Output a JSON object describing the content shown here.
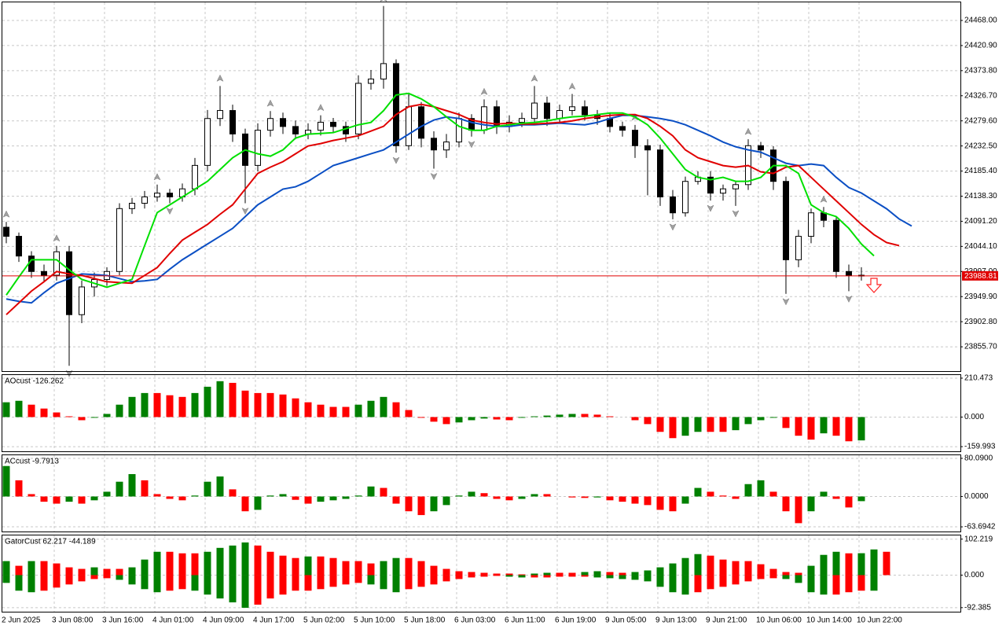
{
  "chart_data": [
    {
      "type": "candlestick",
      "ylim": [
        23810.1,
        24501.9
      ],
      "yticks": [
        {
          "value": 24468,
          "label": "24468.00"
        },
        {
          "value": 24420.9,
          "label": "24420.90"
        },
        {
          "value": 24373.8,
          "label": "24373.80"
        },
        {
          "value": 24326.7,
          "label": "24326.70"
        },
        {
          "value": 24279.6,
          "label": "24279.60"
        },
        {
          "value": 24232.5,
          "label": "24232.50"
        },
        {
          "value": 24185.4,
          "label": "24185.40"
        },
        {
          "value": 24138.3,
          "label": "24138.30"
        },
        {
          "value": 24091.2,
          "label": "24091.20"
        },
        {
          "value": 24044.1,
          "label": "24044.10"
        },
        {
          "value": 23997,
          "label": "23997.00"
        },
        {
          "value": 23949.9,
          "label": "23949.90"
        },
        {
          "value": 23902.8,
          "label": "23902.80"
        },
        {
          "value": 23855.7,
          "label": "23855.70"
        }
      ],
      "grid": true,
      "up_color": "#ffffff",
      "down_color": "#000000",
      "candles": [
        [
          24080,
          24090,
          24050,
          24063
        ],
        [
          24063,
          24070,
          24015,
          24026
        ],
        [
          24026,
          24035,
          23985,
          23997
        ],
        [
          23997,
          24010,
          23978,
          23990
        ],
        [
          23990,
          24045,
          23980,
          24034
        ],
        [
          24034,
          24045,
          23820,
          23916
        ],
        [
          23916,
          23980,
          23900,
          23968
        ],
        [
          23968,
          23995,
          23950,
          23982
        ],
        [
          23982,
          24005,
          23970,
          23997
        ],
        [
          23997,
          24125,
          23990,
          24115
        ],
        [
          24115,
          24135,
          24105,
          24125
        ],
        [
          24125,
          24148,
          24115,
          24137
        ],
        [
          24137,
          24160,
          24128,
          24144
        ],
        [
          24144,
          24152,
          24125,
          24137
        ],
        [
          24137,
          24162,
          24128,
          24152
        ],
        [
          24152,
          24210,
          24140,
          24196
        ],
        [
          24196,
          24300,
          24185,
          24284
        ],
        [
          24284,
          24345,
          24270,
          24299
        ],
        [
          24299,
          24310,
          24240,
          24255
        ],
        [
          24255,
          24265,
          24125,
          24196
        ],
        [
          24196,
          24275,
          24185,
          24262
        ],
        [
          24262,
          24298,
          24250,
          24284
        ],
        [
          24284,
          24295,
          24255,
          24269
        ],
        [
          24269,
          24280,
          24245,
          24255
        ],
        [
          24255,
          24275,
          24245,
          24262
        ],
        [
          24262,
          24290,
          24252,
          24277
        ],
        [
          24277,
          24285,
          24258,
          24269
        ],
        [
          24269,
          24278,
          24240,
          24255
        ],
        [
          24255,
          24365,
          24245,
          24350
        ],
        [
          24350,
          24375,
          24338,
          24358
        ],
        [
          24358,
          24495,
          24340,
          24387
        ],
        [
          24387,
          24395,
          24220,
          24233
        ],
        [
          24233,
          24330,
          24225,
          24306
        ],
        [
          24306,
          24315,
          24230,
          24247
        ],
        [
          24247,
          24260,
          24190,
          24225
        ],
        [
          24225,
          24255,
          24210,
          24240
        ],
        [
          24240,
          24295,
          24230,
          24284
        ],
        [
          24284,
          24292,
          24250,
          24262
        ],
        [
          24262,
          24320,
          24255,
          24306
        ],
        [
          24306,
          24318,
          24255,
          24269
        ],
        [
          24269,
          24290,
          24258,
          24277
        ],
        [
          24277,
          24295,
          24268,
          24284
        ],
        [
          24284,
          24345,
          24275,
          24313
        ],
        [
          24313,
          24325,
          24270,
          24284
        ],
        [
          24284,
          24310,
          24275,
          24299
        ],
        [
          24299,
          24330,
          24290,
          24306
        ],
        [
          24306,
          24318,
          24280,
          24291
        ],
        [
          24291,
          24300,
          24272,
          24284
        ],
        [
          24284,
          24295,
          24258,
          24269
        ],
        [
          24269,
          24278,
          24250,
          24262
        ],
        [
          24262,
          24272,
          24210,
          24233
        ],
        [
          24233,
          24245,
          24140,
          24225
        ],
        [
          24225,
          24235,
          24120,
          24137
        ],
        [
          24137,
          24150,
          24095,
          24107
        ],
        [
          24107,
          24175,
          24100,
          24166
        ],
        [
          24166,
          24185,
          24160,
          24174
        ],
        [
          24174,
          24185,
          24130,
          24144
        ],
        [
          24144,
          24160,
          24130,
          24152
        ],
        [
          24152,
          24165,
          24120,
          24160
        ],
        [
          24160,
          24245,
          24150,
          24233
        ],
        [
          24233,
          24240,
          24210,
          24225
        ],
        [
          24225,
          24232,
          24150,
          24166
        ],
        [
          24166,
          24175,
          23955,
          24019
        ],
        [
          24019,
          24075,
          24005,
          24063
        ],
        [
          24063,
          24115,
          24050,
          24107
        ],
        [
          24107,
          24118,
          24080,
          24093
        ],
        [
          24093,
          24100,
          23985,
          23997
        ],
        [
          23997,
          24010,
          23960,
          23990
        ],
        [
          23990,
          24005,
          23980,
          23988.81
        ]
      ],
      "fractal_color": "#a0a0a0",
      "fractals_up": [
        0,
        4,
        12,
        17,
        21,
        25,
        30,
        38,
        42,
        45,
        50,
        59,
        65
      ],
      "fractals_down": [
        5,
        13,
        19,
        31,
        34,
        37,
        53,
        56,
        58,
        62,
        67
      ],
      "lines": [
        {
          "color": "#0b4fc4",
          "values": [
            23945.4,
            23941.0,
            23938.1,
            23957.2,
            23974.9,
            23983.7,
            23992.5,
            23991.1,
            23989.6,
            23983.7,
            23977.8,
            23979.3,
            23982.2,
            24001.4,
            24019.0,
            24033.8,
            24048.5,
            24063.2,
            24077.9,
            24100.0,
            24122.1,
            24136.8,
            24151.5,
            24155.9,
            24166.2,
            24181.0,
            24195.7,
            24203.0,
            24210.4,
            24217.8,
            24225.1,
            24239.8,
            24254.6,
            24269.3,
            24281.1,
            24287.1,
            24284.0,
            24276.6,
            24272.2,
            24269.3,
            24269.3,
            24272.2,
            24272.2,
            24273.7,
            24275.2,
            24273.7,
            24272.2,
            24276.6,
            24284.0,
            24289.9,
            24289.9,
            24287.1,
            24284.0,
            24279.6,
            24272.2,
            24261.9,
            24251.6,
            24239.8,
            24231.0,
            24225.1,
            24220.7,
            24210.4,
            24200.1,
            24195.7,
            24198.6,
            24195.7,
            24173.6,
            24154.5,
            24144.2,
            24129.4,
            24114.7,
            24095.6,
            24082.3
          ]
        },
        {
          "color": "#e00000",
          "values": [
            23916.0,
            23938.1,
            23960.2,
            23977.8,
            23996.9,
            23992.5,
            23989.6,
            23983.7,
            23977.8,
            23976.3,
            23974.9,
            23989.6,
            24004.3,
            24030.8,
            24055.8,
            24070.6,
            24085.3,
            24104.4,
            24122.1,
            24151.5,
            24181.0,
            24192.7,
            24203.0,
            24217.8,
            24232.5,
            24236.9,
            24242.8,
            24247.2,
            24251.6,
            24260.4,
            24269.3,
            24291.4,
            24306.1,
            24310.5,
            24306.1,
            24298.7,
            24291.4,
            24281.1,
            24276.6,
            24273.7,
            24275.2,
            24273.7,
            24273.7,
            24275.2,
            24276.6,
            24279.6,
            24284.0,
            24287.1,
            24289.9,
            24291.4,
            24291.4,
            24284.0,
            24269.3,
            24251.6,
            24225.1,
            24210.4,
            24203.0,
            24195.7,
            24192.7,
            24195.7,
            24183.9,
            24181.0,
            24192.7,
            24195.7,
            24173.6,
            24151.5,
            24129.4,
            24107.4,
            24085.3,
            24066.1,
            24051.4,
            24045.5,
            null
          ]
        },
        {
          "color": "#00e000",
          "values": [
            23952.8,
            23986.7,
            24019.0,
            24019.0,
            24019.0,
            24000.1,
            23982.2,
            23974.9,
            23967.5,
            23974.9,
            23982.2,
            24045.5,
            24107.4,
            24122.1,
            24136.8,
            24151.5,
            24166.2,
            24188.3,
            24210.4,
            24225.1,
            24217.8,
            24213.3,
            24225.1,
            24247.2,
            24254.6,
            24256.0,
            24257.5,
            24264.9,
            24272.2,
            24276.6,
            24298.7,
            24328.2,
            24331.1,
            24320.8,
            24306.1,
            24287.1,
            24269.3,
            24261.9,
            24261.9,
            24269.3,
            24272.2,
            24275.2,
            24276.6,
            24279.6,
            24284.0,
            24287.1,
            24288.4,
            24291.4,
            24294.3,
            24294.3,
            24287.1,
            24272.2,
            24247.2,
            24217.8,
            24188.3,
            24173.6,
            24169.2,
            24173.6,
            24166.2,
            24166.2,
            24173.6,
            24195.7,
            24195.7,
            24181.0,
            24122.1,
            24107.4,
            24100.0,
            24077.9,
            24048.5,
            24026.4,
            null,
            null,
            null
          ]
        }
      ],
      "price_line": 23988.81,
      "price_line_color": "#e00000"
    },
    {
      "type": "bar",
      "title": "AOcust -126.262",
      "ylim": [
        -185.2,
        227.3
      ],
      "yticks": [
        210.473,
        {
          "value": 0,
          "label": "0.000"
        },
        -159.993
      ],
      "up_color": "#008000",
      "down_color": "#ff0000",
      "values": [
        80,
        88,
        67,
        46,
        25,
        4,
        -17,
        -4,
        17,
        67,
        109,
        130,
        130,
        118,
        109,
        130,
        164,
        194,
        185,
        143,
        130,
        130,
        122,
        101,
        80,
        67,
        55,
        55,
        67,
        88,
        109,
        80,
        38,
        -4,
        -25,
        -38,
        -29,
        -17,
        -8,
        -13,
        -17,
        -4,
        4,
        8,
        13,
        17,
        17,
        13,
        4,
        0,
        -17,
        -38,
        -80,
        -114,
        -101,
        -80,
        -80,
        -80,
        -71,
        -38,
        -17,
        -4,
        -59,
        -101,
        -122,
        -88,
        -101,
        -131,
        -126.262
      ]
    },
    {
      "type": "bar",
      "title": "ACcust -9.7913",
      "ylim": [
        -73.5,
        86.6
      ],
      "yticks": [
        {
          "value": 80.09,
          "label": "80.0900"
        },
        {
          "value": 0,
          "label": "0.0000"
        },
        -63.6942
      ],
      "up_color": "#008000",
      "down_color": "#ff0000",
      "values": [
        64,
        34,
        5,
        -11,
        -15,
        -11,
        -15,
        -8,
        10,
        31,
        47,
        34,
        5,
        -5,
        -8,
        2,
        31,
        42,
        15,
        -31,
        -28,
        2,
        5,
        -7,
        -15,
        -11,
        -8,
        -5,
        2,
        21,
        18,
        -15,
        -31,
        -39,
        -31,
        -18,
        2,
        10,
        7,
        -5,
        -8,
        -5,
        5,
        5,
        0,
        -2,
        -3,
        -2,
        -8,
        -11,
        -15,
        -18,
        -28,
        -31,
        -15,
        18,
        10,
        2,
        -5,
        26,
        34,
        10,
        -31,
        -56,
        -31,
        10,
        -5,
        -23,
        -9.7913
      ]
    },
    {
      "type": "gator",
      "title": "GatorCust 62.217 -44.189",
      "ylim": [
        -103.9,
        112.7
      ],
      "yticks": [
        102.219,
        {
          "value": 0,
          "label": "0.000"
        },
        -92.385
      ],
      "up_color": "#008000",
      "down_color": "#ff0000",
      "series": [
        {
          "values": [
            39.8,
            26.5,
            39.8,
            39.8,
            33.2,
            22.1,
            17.7,
            22.1,
            17.7,
            17.7,
            22.1,
            44.2,
            66.3,
            66.3,
            61.9,
            61.9,
            66.3,
            77.4,
            84.0,
            92.8,
            84.0,
            66.3,
            55.3,
            48.6,
            53.0,
            53.0,
            48.6,
            39.8,
            39.8,
            33.2,
            39.8,
            48.6,
            48.6,
            39.8,
            26.5,
            17.7,
            11.1,
            8.8,
            6.6,
            4.4,
            4.4,
            2.2,
            4.4,
            6.6,
            6.6,
            6.6,
            8.8,
            11.1,
            8.8,
            6.6,
            8.8,
            13.3,
            22.1,
            33.2,
            48.6,
            59.7,
            55.3,
            44.2,
            39.8,
            39.8,
            30.9,
            17.7,
            8.8,
            6.6,
            26.5,
            57.5,
            66.3,
            61.9,
            62.217,
            72.9,
            66.3
          ]
        },
        {
          "values": [
            -22.1,
            -44.2,
            -48.6,
            -44.2,
            -35.4,
            -26.5,
            -17.7,
            -11.1,
            -8.8,
            -13.3,
            -26.5,
            -39.8,
            -48.6,
            -44.2,
            -39.8,
            -44.2,
            -55.3,
            -66.3,
            -77.4,
            -92.8,
            -84.0,
            -66.3,
            -55.3,
            -44.2,
            -44.2,
            -39.8,
            -33.2,
            -26.5,
            -22.1,
            -26.5,
            -39.8,
            -48.6,
            -39.8,
            -33.2,
            -26.5,
            -17.7,
            -11.1,
            -6.6,
            -4.4,
            -2.2,
            -4.4,
            -6.6,
            -6.6,
            -6.6,
            -4.4,
            -4.4,
            -4.4,
            -6.6,
            -8.8,
            -11.1,
            -13.3,
            -17.7,
            -33.2,
            -48.6,
            -55.3,
            -48.6,
            -39.8,
            -33.2,
            -26.5,
            -17.7,
            -11.1,
            -8.8,
            -11.1,
            -22.1,
            -48.6,
            -55.3,
            -55.3,
            -48.6,
            -44.189,
            -44.2
          ]
        }
      ]
    }
  ],
  "time_axis": [
    "2 Jun 2025",
    "3 Jun 08:00",
    "3 Jun 16:00",
    "4 Jun 01:00",
    "4 Jun 09:00",
    "4 Jun 17:00",
    "5 Jun 02:00",
    "5 Jun 10:00",
    "5 Jun 18:00",
    "6 Jun 03:00",
    "6 Jun 11:00",
    "6 Jun 19:00",
    "9 Jun 05:00",
    "9 Jun 13:00",
    "9 Jun 21:00",
    "10 Jun 06:00",
    "10 Jun 14:00",
    "10 Jun 22:00"
  ]
}
